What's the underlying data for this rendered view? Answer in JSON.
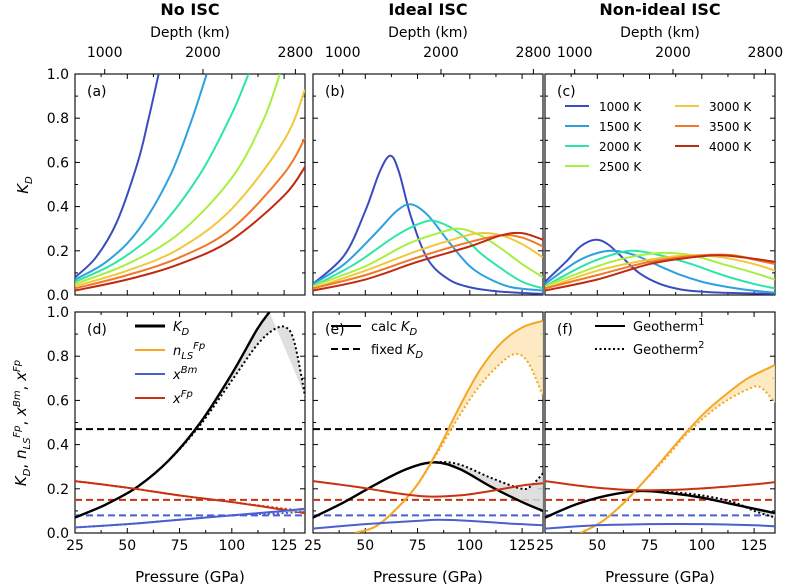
{
  "column_titles": [
    "No ISC",
    "Ideal ISC",
    "Non-ideal ISC"
  ],
  "top_axis": {
    "label": "Depth (km)",
    "ticks": [
      {
        "label": "1000",
        "pressure": 39.2
      },
      {
        "label": "2000",
        "pressure": 86.2
      },
      {
        "label": "2800",
        "pressure": 130.4
      }
    ]
  },
  "x_axis": {
    "label": "Pressure (GPa)",
    "range": [
      25,
      135
    ],
    "ticks": [
      "25",
      "50",
      "75",
      "100",
      "125"
    ]
  },
  "top_row_ylabel": "K_D",
  "bottom_row_ylabel": "K_D, n_LS^Fp, x^Bm, x^Fp",
  "colors": {
    "1000 K": "#3b4cc0",
    "1500 K": "#2da0e0",
    "2000 K": "#2ce6a8",
    "2500 K": "#a8f040",
    "3000 K": "#f0c83a",
    "3500 K": "#f07828",
    "4000 K": "#c02a10",
    "K_D": "#000000",
    "n_LS": "#f5a623",
    "x_Bm": "#4a5fd0",
    "x_Fp": "#c83210",
    "shade": "#d9d9d9"
  },
  "chart_data": [
    {
      "panel": "(a)",
      "type": "line",
      "title": "No ISC",
      "xlabel": "",
      "ylabel": "K_D",
      "xlim": [
        25,
        135
      ],
      "ylim": [
        0,
        1.0
      ],
      "yticks": [
        "0.0",
        "0.2",
        "0.4",
        "0.6",
        "0.8",
        "1.0"
      ],
      "grid": false,
      "series": [
        {
          "name": "1000 K",
          "x": [
            25,
            35,
            45,
            55,
            60,
            65
          ],
          "y": [
            0.08,
            0.17,
            0.33,
            0.6,
            0.79,
            1.0
          ]
        },
        {
          "name": "1500 K",
          "x": [
            25,
            40,
            55,
            70,
            80,
            88
          ],
          "y": [
            0.07,
            0.15,
            0.29,
            0.53,
            0.77,
            1.0
          ]
        },
        {
          "name": "2000 K",
          "x": [
            25,
            45,
            65,
            85,
            100,
            108
          ],
          "y": [
            0.06,
            0.15,
            0.3,
            0.55,
            0.82,
            1.0
          ]
        },
        {
          "name": "2500 K",
          "x": [
            25,
            50,
            75,
            100,
            115,
            123
          ],
          "y": [
            0.05,
            0.14,
            0.28,
            0.53,
            0.79,
            1.0
          ]
        },
        {
          "name": "3000 K",
          "x": [
            25,
            50,
            75,
            100,
            125,
            135
          ],
          "y": [
            0.04,
            0.11,
            0.21,
            0.39,
            0.7,
            0.93
          ]
        },
        {
          "name": "3500 K",
          "x": [
            25,
            50,
            75,
            100,
            125,
            135
          ],
          "y": [
            0.03,
            0.09,
            0.17,
            0.3,
            0.55,
            0.71
          ]
        },
        {
          "name": "4000 K",
          "x": [
            25,
            50,
            75,
            100,
            125,
            135
          ],
          "y": [
            0.02,
            0.07,
            0.14,
            0.25,
            0.45,
            0.58
          ]
        }
      ]
    },
    {
      "panel": "(b)",
      "type": "line",
      "title": "Ideal ISC",
      "xlabel": "",
      "ylabel": "",
      "xlim": [
        25,
        135
      ],
      "ylim": [
        0,
        1.0
      ],
      "grid": false,
      "series": [
        {
          "name": "1000 K",
          "x": [
            25,
            40,
            50,
            57,
            62,
            66,
            72,
            80,
            90,
            100,
            110,
            120,
            135
          ],
          "y": [
            0.05,
            0.18,
            0.38,
            0.56,
            0.63,
            0.56,
            0.35,
            0.16,
            0.07,
            0.035,
            0.02,
            0.012,
            0.005
          ]
        },
        {
          "name": "1500 K",
          "x": [
            25,
            40,
            55,
            65,
            72,
            80,
            90,
            100,
            110,
            120,
            135
          ],
          "y": [
            0.05,
            0.14,
            0.28,
            0.38,
            0.41,
            0.36,
            0.24,
            0.13,
            0.07,
            0.035,
            0.02
          ]
        },
        {
          "name": "2000 K",
          "x": [
            25,
            45,
            65,
            78,
            85,
            95,
            105,
            115,
            125,
            135
          ],
          "y": [
            0.04,
            0.14,
            0.27,
            0.33,
            0.33,
            0.28,
            0.19,
            0.12,
            0.06,
            0.03
          ]
        },
        {
          "name": "2500 K",
          "x": [
            25,
            50,
            70,
            85,
            95,
            105,
            115,
            125,
            135
          ],
          "y": [
            0.04,
            0.13,
            0.23,
            0.28,
            0.3,
            0.27,
            0.21,
            0.14,
            0.08
          ]
        },
        {
          "name": "3000 K",
          "x": [
            25,
            50,
            75,
            95,
            105,
            115,
            125,
            135
          ],
          "y": [
            0.03,
            0.11,
            0.2,
            0.26,
            0.28,
            0.27,
            0.23,
            0.17
          ]
        },
        {
          "name": "3500 K",
          "x": [
            25,
            50,
            75,
            100,
            115,
            125,
            135
          ],
          "y": [
            0.03,
            0.09,
            0.17,
            0.24,
            0.27,
            0.26,
            0.22
          ]
        },
        {
          "name": "4000 K",
          "x": [
            25,
            50,
            75,
            100,
            115,
            125,
            135
          ],
          "y": [
            0.02,
            0.07,
            0.15,
            0.22,
            0.27,
            0.28,
            0.25
          ]
        }
      ]
    },
    {
      "panel": "(c)",
      "type": "line",
      "title": "Non-ideal ISC",
      "xlabel": "",
      "ylabel": "",
      "xlim": [
        25,
        135
      ],
      "ylim": [
        0,
        1.0
      ],
      "grid": false,
      "legend_position": "top-right",
      "legend": [
        "1000 K",
        "1500 K",
        "2000 K",
        "2500 K",
        "3000 K",
        "3500 K",
        "4000 K"
      ],
      "series": [
        {
          "name": "1000 K",
          "x": [
            25,
            35,
            42,
            49,
            55,
            62,
            70,
            80,
            90,
            100,
            110,
            135
          ],
          "y": [
            0.06,
            0.15,
            0.22,
            0.25,
            0.23,
            0.17,
            0.1,
            0.05,
            0.025,
            0.015,
            0.01,
            0.005
          ]
        },
        {
          "name": "1500 K",
          "x": [
            25,
            40,
            50,
            58,
            68,
            80,
            90,
            100,
            110,
            120,
            135
          ],
          "y": [
            0.05,
            0.15,
            0.19,
            0.2,
            0.18,
            0.13,
            0.09,
            0.06,
            0.04,
            0.025,
            0.01
          ]
        },
        {
          "name": "2000 K",
          "x": [
            25,
            45,
            60,
            68,
            80,
            95,
            110,
            125,
            135
          ],
          "y": [
            0.04,
            0.14,
            0.19,
            0.2,
            0.18,
            0.14,
            0.09,
            0.05,
            0.03
          ]
        },
        {
          "name": "2500 K",
          "x": [
            25,
            50,
            65,
            80,
            95,
            110,
            125,
            135
          ],
          "y": [
            0.04,
            0.13,
            0.17,
            0.19,
            0.18,
            0.14,
            0.1,
            0.07
          ]
        },
        {
          "name": "3000 K",
          "x": [
            25,
            50,
            75,
            95,
            110,
            125,
            135
          ],
          "y": [
            0.03,
            0.11,
            0.16,
            0.18,
            0.17,
            0.14,
            0.11
          ]
        },
        {
          "name": "3500 K",
          "x": [
            25,
            50,
            75,
            100,
            115,
            125,
            135
          ],
          "y": [
            0.03,
            0.09,
            0.15,
            0.18,
            0.18,
            0.16,
            0.14
          ]
        },
        {
          "name": "4000 K",
          "x": [
            25,
            50,
            75,
            95,
            108,
            120,
            135
          ],
          "y": [
            0.02,
            0.07,
            0.14,
            0.17,
            0.18,
            0.17,
            0.15
          ]
        }
      ]
    },
    {
      "panel": "(d)",
      "type": "line",
      "xlabel": "Pressure (GPa)",
      "ylabel": "K_D, n_LS^Fp, x^Bm, x^Fp",
      "xlim": [
        25,
        135
      ],
      "ylim": [
        0,
        1.0
      ],
      "yticks": [
        "0.0",
        "0.2",
        "0.4",
        "0.6",
        "0.8",
        "1.0"
      ],
      "xticks": [
        "25",
        "50",
        "75",
        "100",
        "125"
      ],
      "grid": false,
      "legend_position": "top-left",
      "legend": [
        "K_D",
        "n_LS^Fp",
        "x^Bm",
        "x^Fp"
      ],
      "series": [
        {
          "name": "K_D",
          "x": [
            25,
            40,
            55,
            70,
            85,
            100,
            112,
            118
          ],
          "y": [
            0.07,
            0.13,
            0.21,
            0.33,
            0.5,
            0.72,
            0.92,
            1.0
          ]
        },
        {
          "name": "K_D (Geotherm 2)",
          "x": [
            25,
            40,
            55,
            70,
            85,
            100,
            112,
            120,
            126,
            130,
            135
          ],
          "y": [
            0.07,
            0.13,
            0.21,
            0.33,
            0.49,
            0.69,
            0.85,
            0.92,
            0.93,
            0.86,
            0.62
          ]
        },
        {
          "name": "x^Fp",
          "x": [
            25,
            50,
            75,
            100,
            125,
            135
          ],
          "y": [
            0.235,
            0.205,
            0.17,
            0.14,
            0.105,
            0.09
          ]
        },
        {
          "name": "x^Fp (Geotherm 2)",
          "x": [
            25,
            50,
            75,
            100,
            125,
            135
          ],
          "y": [
            0.235,
            0.205,
            0.17,
            0.14,
            0.11,
            0.1
          ]
        },
        {
          "name": "x^Bm",
          "x": [
            25,
            50,
            75,
            100,
            125,
            135
          ],
          "y": [
            0.025,
            0.04,
            0.06,
            0.08,
            0.1,
            0.11
          ]
        },
        {
          "name": "x^Bm (Geotherm 2)",
          "x": [
            25,
            50,
            75,
            100,
            125,
            135
          ],
          "y": [
            0.025,
            0.04,
            0.06,
            0.08,
            0.09,
            0.1
          ]
        }
      ],
      "horizontal_lines": [
        {
          "label": "fixed K_D",
          "y": 0.47
        },
        {
          "label": "fixed x^Fp",
          "y": 0.15
        },
        {
          "label": "fixed x^Bm",
          "y": 0.08
        }
      ]
    },
    {
      "panel": "(e)",
      "type": "line",
      "xlabel": "Pressure (GPa)",
      "ylabel": "",
      "xlim": [
        25,
        135
      ],
      "ylim": [
        0,
        1.0
      ],
      "xticks": [
        "25",
        "50",
        "75",
        "100",
        "125"
      ],
      "grid": false,
      "legend_position": "top-left",
      "legend": [
        "calc K_D",
        "fixed K_D"
      ],
      "series": [
        {
          "name": "calc K_D",
          "x": [
            25,
            40,
            55,
            70,
            83,
            95,
            110,
            125,
            135
          ],
          "y": [
            0.07,
            0.14,
            0.22,
            0.29,
            0.32,
            0.29,
            0.21,
            0.14,
            0.1
          ]
        },
        {
          "name": "calc K_D (Geotherm 2)",
          "x": [
            25,
            40,
            55,
            70,
            83,
            95,
            110,
            125,
            130,
            135
          ],
          "y": [
            0.07,
            0.14,
            0.22,
            0.29,
            0.32,
            0.31,
            0.25,
            0.2,
            0.22,
            0.27
          ]
        },
        {
          "name": "n_LS^Fp",
          "x": [
            45,
            55,
            65,
            75,
            85,
            95,
            105,
            115,
            125,
            135
          ],
          "y": [
            0.0,
            0.03,
            0.11,
            0.22,
            0.38,
            0.57,
            0.74,
            0.86,
            0.93,
            0.96
          ]
        },
        {
          "name": "n_LS^Fp (Geotherm 2)",
          "x": [
            45,
            55,
            65,
            75,
            85,
            95,
            105,
            115,
            122,
            128,
            135
          ],
          "y": [
            0.0,
            0.03,
            0.11,
            0.22,
            0.37,
            0.53,
            0.67,
            0.77,
            0.81,
            0.77,
            0.62
          ]
        },
        {
          "name": "x^Fp",
          "x": [
            25,
            45,
            65,
            80,
            95,
            110,
            125,
            135
          ],
          "y": [
            0.235,
            0.21,
            0.18,
            0.165,
            0.17,
            0.19,
            0.215,
            0.225
          ]
        },
        {
          "name": "x^Bm",
          "x": [
            25,
            50,
            75,
            85,
            100,
            115,
            125,
            135
          ],
          "y": [
            0.02,
            0.04,
            0.055,
            0.06,
            0.055,
            0.045,
            0.04,
            0.035
          ]
        }
      ],
      "horizontal_lines": [
        {
          "label": "fixed K_D",
          "y": 0.47
        },
        {
          "label": "fixed x^Fp",
          "y": 0.15
        },
        {
          "label": "fixed x^Bm",
          "y": 0.08
        }
      ]
    },
    {
      "panel": "(f)",
      "type": "line",
      "xlabel": "Pressure (GPa)",
      "ylabel": "",
      "xlim": [
        25,
        135
      ],
      "ylim": [
        0,
        1.0
      ],
      "xticks": [
        "25",
        "50",
        "75",
        "100",
        "125"
      ],
      "grid": false,
      "legend_position": "top-left",
      "legend": [
        "Geotherm^1",
        "Geotherm^2"
      ],
      "series": [
        {
          "name": "K_D",
          "x": [
            25,
            40,
            55,
            70,
            85,
            100,
            115,
            125,
            135
          ],
          "y": [
            0.07,
            0.13,
            0.17,
            0.19,
            0.18,
            0.16,
            0.13,
            0.11,
            0.09
          ]
        },
        {
          "name": "K_D (Geotherm 2)",
          "x": [
            25,
            40,
            55,
            70,
            85,
            100,
            115,
            125,
            135
          ],
          "y": [
            0.07,
            0.13,
            0.17,
            0.19,
            0.185,
            0.17,
            0.14,
            0.1,
            0.07
          ]
        },
        {
          "name": "n_LS^Fp",
          "x": [
            42,
            52,
            62,
            72,
            82,
            92,
            102,
            112,
            122,
            135
          ],
          "y": [
            0.0,
            0.05,
            0.13,
            0.23,
            0.34,
            0.45,
            0.55,
            0.63,
            0.7,
            0.76
          ]
        },
        {
          "name": "n_LS^Fp (Geotherm 2)",
          "x": [
            42,
            52,
            62,
            72,
            82,
            92,
            102,
            112,
            122,
            128,
            135
          ],
          "y": [
            0.0,
            0.05,
            0.13,
            0.23,
            0.33,
            0.44,
            0.53,
            0.6,
            0.65,
            0.66,
            0.59
          ]
        },
        {
          "name": "x^Fp",
          "x": [
            25,
            45,
            65,
            85,
            105,
            125,
            135
          ],
          "y": [
            0.235,
            0.21,
            0.195,
            0.195,
            0.205,
            0.22,
            0.23
          ]
        },
        {
          "name": "x^Bm",
          "x": [
            25,
            50,
            75,
            100,
            125,
            135
          ],
          "y": [
            0.02,
            0.035,
            0.04,
            0.04,
            0.035,
            0.03
          ]
        }
      ],
      "horizontal_lines": [
        {
          "label": "fixed K_D",
          "y": 0.47
        },
        {
          "label": "fixed x^Fp",
          "y": 0.15
        },
        {
          "label": "fixed x^Bm",
          "y": 0.08
        }
      ]
    }
  ]
}
